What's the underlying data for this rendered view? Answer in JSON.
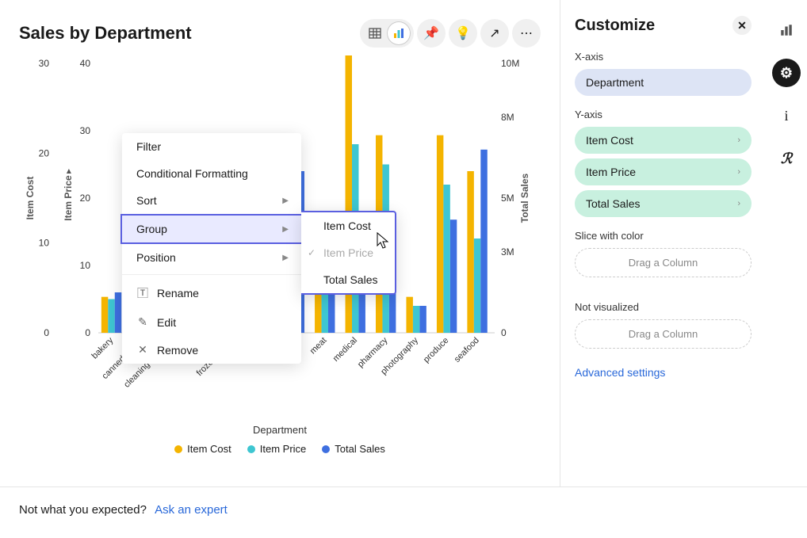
{
  "title": "Sales by Department",
  "toolbar": {
    "table_icon": "table-icon",
    "chart_icon": "chart-icon",
    "pin_icon": "pin-icon",
    "bulb_icon": "bulb-icon",
    "share_icon": "share-icon",
    "more_icon": "more-icon"
  },
  "chart": {
    "type": "grouped-bar",
    "categories": [
      "bakery",
      "canned goods",
      "cleaning supplies",
      "dairy",
      "frozen goods",
      "gifts",
      "liquor",
      "meat",
      "medical",
      "pharmacy",
      "photography",
      "produce",
      "seafood"
    ],
    "series": [
      {
        "name": "Item Cost",
        "color": "#f4b400",
        "values": [
          4,
          3,
          4,
          5,
          4,
          2,
          17,
          10,
          32,
          22,
          4,
          22,
          18
        ]
      },
      {
        "name": "Item Price",
        "color": "#3ec6d1",
        "values": [
          5,
          3,
          3,
          5,
          5,
          3,
          13,
          13,
          28,
          25,
          4,
          22,
          14
        ]
      },
      {
        "name": "Total Sales",
        "color": "#3e6fe0",
        "values": [
          1.5,
          1.2,
          1.2,
          1.2,
          0.8,
          0.3,
          6.0,
          3.5,
          4.0,
          3.5,
          1.0,
          4.2,
          6.8
        ],
        "scale": "right"
      }
    ],
    "left_axis": {
      "label": "Item Cost",
      "ticks": [
        0,
        10,
        20,
        30
      ],
      "max": 30
    },
    "left2_axis": {
      "label": "Item Price",
      "ticks": [
        0,
        10,
        20,
        30,
        40
      ],
      "max": 40
    },
    "right_axis": {
      "label": "Total Sales",
      "ticks": [
        "0",
        "3M",
        "5M",
        "8M",
        "10M"
      ],
      "tick_vals": [
        0,
        3,
        5,
        8,
        10
      ],
      "max": 10
    },
    "x_axis_label": "Department",
    "grid_color": "#e5e5e5",
    "bg": "#ffffff"
  },
  "context_menu": {
    "items": [
      {
        "label": "Filter"
      },
      {
        "label": "Conditional Formatting"
      },
      {
        "label": "Sort",
        "submenu": true
      },
      {
        "label": "Group",
        "submenu": true,
        "highlight": true
      },
      {
        "label": "Position",
        "submenu": true
      },
      {
        "sep": true
      },
      {
        "label": "Rename",
        "icon": "rename"
      },
      {
        "label": "Edit",
        "icon": "edit"
      },
      {
        "label": "Remove",
        "icon": "remove"
      }
    ],
    "group_submenu": [
      {
        "label": "Item Cost"
      },
      {
        "label": "Item Price",
        "checked": true,
        "disabled": true
      },
      {
        "label": "Total Sales"
      }
    ]
  },
  "customize": {
    "title": "Customize",
    "xaxis_label": "X-axis",
    "xaxis_value": "Department",
    "yaxis_label": "Y-axis",
    "yaxis_values": [
      "Item Cost",
      "Item Price",
      "Total Sales"
    ],
    "slice_label": "Slice with color",
    "drag_placeholder": "Drag a Column",
    "notviz_label": "Not visualized",
    "advanced_link": "Advanced settings"
  },
  "rail": {
    "items": [
      "chart",
      "settings",
      "info",
      "r"
    ]
  },
  "footer": {
    "text": "Not what you expected?",
    "link": "Ask an expert"
  }
}
